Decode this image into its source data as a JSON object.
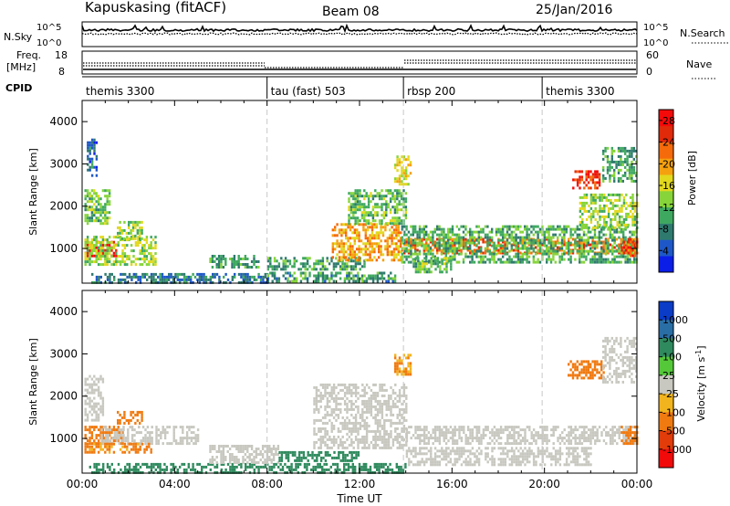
{
  "header": {
    "station": "Kapuskasing (fitACF)",
    "beam": "Beam 08",
    "date": "25/Jan/2016"
  },
  "strip_labels": {
    "nsky": "N.Sky",
    "nsky_ticks": [
      "10^5",
      "10^0"
    ],
    "nsearch": "N.Search",
    "nsearch_ticks": [
      "10^5",
      "10^0"
    ],
    "freq": "Freq.",
    "freq_unit": "[MHz]",
    "freq_ticks": [
      "18",
      "8"
    ],
    "nave": "Nave",
    "nave_ticks": [
      "60",
      "0"
    ],
    "cpid": "CPID"
  },
  "cpid_segments": [
    {
      "label": "themis 3300",
      "start_hour": 0
    },
    {
      "label": "tau (fast) 503",
      "start_hour": 8.0
    },
    {
      "label": "rbsp 200",
      "start_hour": 13.9
    },
    {
      "label": "themis 3300",
      "start_hour": 19.9
    }
  ],
  "chart_data": [
    {
      "type": "heatmap",
      "title": "Power",
      "xlabel": "Time UT",
      "ylabel": "Slant Range [km]",
      "x_ticks": [
        "00:00",
        "04:00",
        "08:00",
        "12:00",
        "16:00",
        "20:00",
        "00:00"
      ],
      "xlim_hours": [
        0,
        24
      ],
      "y_ticks": [
        "1000",
        "2000",
        "3000",
        "4000"
      ],
      "ylim_km": [
        180,
        4500
      ],
      "colorbar": {
        "label": "Power [dB]",
        "ticks": [
          "4",
          "8",
          "12",
          "16",
          "20",
          "24",
          "28"
        ],
        "range": [
          0,
          30
        ],
        "colors": [
          "#0a1ee8",
          "#1e58c8",
          "#2f7a6e",
          "#3fa860",
          "#86d43a",
          "#e2d81e",
          "#f5a00e",
          "#f56a0a",
          "#e02a0a",
          "#f50a0a"
        ]
      },
      "regions": [
        {
          "t": [
            0.1,
            1.5
          ],
          "r": [
            830,
            1180
          ],
          "value": 28
        },
        {
          "t": [
            0.1,
            3.2
          ],
          "r": [
            650,
            1300
          ],
          "value": 14
        },
        {
          "t": [
            0.1,
            1.2
          ],
          "r": [
            1600,
            2400
          ],
          "value": 12
        },
        {
          "t": [
            0.2,
            0.6
          ],
          "r": [
            2700,
            3600
          ],
          "value": 6
        },
        {
          "t": [
            1.5,
            2.6
          ],
          "r": [
            1250,
            1650
          ],
          "value": 14
        },
        {
          "t": [
            0.3,
            8.0
          ],
          "r": [
            200,
            420
          ],
          "value": 7
        },
        {
          "t": [
            5.5,
            7.6
          ],
          "r": [
            550,
            850
          ],
          "value": 10
        },
        {
          "t": [
            8.0,
            12.2
          ],
          "r": [
            500,
            800
          ],
          "value": 10
        },
        {
          "t": [
            8.0,
            13.5
          ],
          "r": [
            200,
            450
          ],
          "value": 9
        },
        {
          "t": [
            10.8,
            13.8
          ],
          "r": [
            750,
            1600
          ],
          "value": 20
        },
        {
          "t": [
            11.5,
            14.0
          ],
          "r": [
            1600,
            2400
          ],
          "value": 12
        },
        {
          "t": [
            13.5,
            14.2
          ],
          "r": [
            2500,
            3200
          ],
          "value": 16
        },
        {
          "t": [
            13.8,
            24.0
          ],
          "r": [
            900,
            1250
          ],
          "value": 22
        },
        {
          "t": [
            13.8,
            24.0
          ],
          "r": [
            650,
            1550
          ],
          "value": 11
        },
        {
          "t": [
            14.3,
            16.0
          ],
          "r": [
            450,
            800
          ],
          "value": 12
        },
        {
          "t": [
            21.2,
            22.4
          ],
          "r": [
            2450,
            2850
          ],
          "value": 26
        },
        {
          "t": [
            21.5,
            24.0
          ],
          "r": [
            1500,
            2300
          ],
          "value": 14
        },
        {
          "t": [
            22.5,
            24.0
          ],
          "r": [
            2600,
            3400
          ],
          "value": 10
        },
        {
          "t": [
            23.3,
            24.0
          ],
          "r": [
            800,
            1250
          ],
          "value": 24
        }
      ]
    },
    {
      "type": "heatmap",
      "title": "Velocity",
      "xlabel": "Time UT",
      "ylabel": "Slant Range [km]",
      "x_ticks": [
        "00:00",
        "04:00",
        "08:00",
        "12:00",
        "16:00",
        "20:00",
        "00:00"
      ],
      "xlim_hours": [
        0,
        24
      ],
      "y_ticks": [
        "1000",
        "2000",
        "3000",
        "4000"
      ],
      "ylim_km": [
        180,
        4500
      ],
      "colorbar": {
        "label": "Velocity [m s^-1]",
        "ticks": [
          "1000",
          "500",
          "100",
          "25",
          "-25",
          "-100",
          "-500",
          "-1000"
        ],
        "colors": [
          "#0a3cc8",
          "#2a6ea6",
          "#2f8a5e",
          "#55c83a",
          "#c8c8c0",
          "#f2b41e",
          "#f07a10",
          "#e23c0a",
          "#f20a0a"
        ]
      },
      "regions": [
        {
          "t": [
            0.1,
            1.8
          ],
          "r": [
            900,
            1300
          ],
          "value": -200
        },
        {
          "t": [
            0.1,
            0.9
          ],
          "r": [
            1400,
            2500
          ],
          "value": 0
        },
        {
          "t": [
            1.5,
            2.6
          ],
          "r": [
            1350,
            1650
          ],
          "value": -300
        },
        {
          "t": [
            0.8,
            5.0
          ],
          "r": [
            850,
            1300
          ],
          "value": 0
        },
        {
          "t": [
            0.1,
            3.0
          ],
          "r": [
            650,
            900
          ],
          "value": -120
        },
        {
          "t": [
            0.3,
            14.0
          ],
          "r": [
            180,
            420
          ],
          "value": 150
        },
        {
          "t": [
            5.5,
            8.5
          ],
          "r": [
            450,
            850
          ],
          "value": 0
        },
        {
          "t": [
            8.5,
            12.0
          ],
          "r": [
            500,
            700
          ],
          "value": 150
        },
        {
          "t": [
            10.0,
            14.0
          ],
          "r": [
            800,
            2300
          ],
          "value": 0
        },
        {
          "t": [
            13.5,
            14.2
          ],
          "r": [
            2500,
            3000
          ],
          "value": -100
        },
        {
          "t": [
            14.0,
            24.0
          ],
          "r": [
            900,
            1300
          ],
          "value": 0
        },
        {
          "t": [
            14.0,
            22.0
          ],
          "r": [
            400,
            800
          ],
          "value": 0
        },
        {
          "t": [
            21.0,
            22.6
          ],
          "r": [
            2400,
            2850
          ],
          "value": -300
        },
        {
          "t": [
            22.5,
            24.0
          ],
          "r": [
            2300,
            3400
          ],
          "value": 0
        },
        {
          "t": [
            23.3,
            24.0
          ],
          "r": [
            900,
            1300
          ],
          "value": -300
        }
      ]
    }
  ]
}
